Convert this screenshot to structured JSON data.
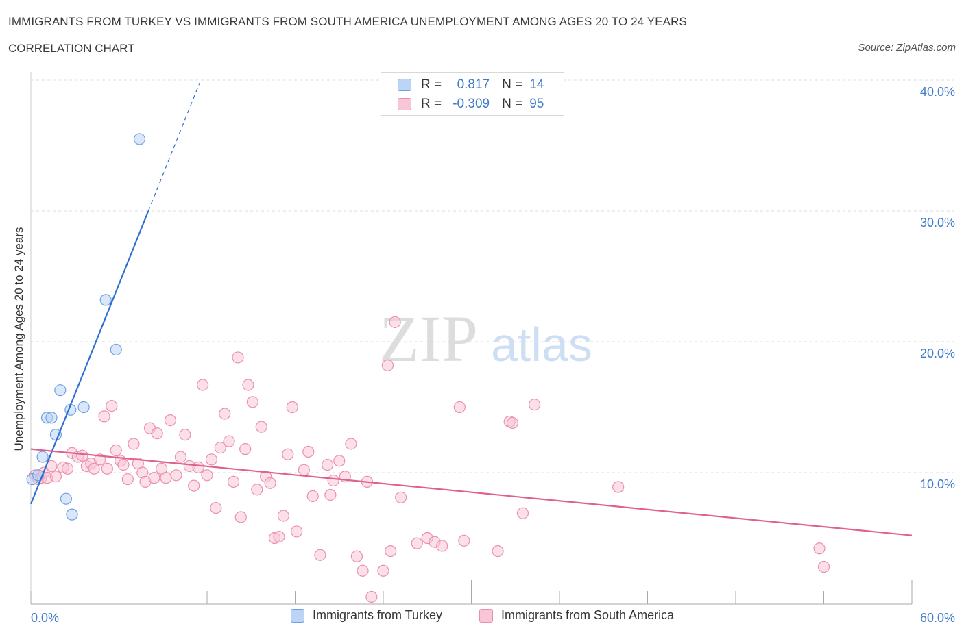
{
  "title": "IMMIGRANTS FROM TURKEY VS IMMIGRANTS FROM SOUTH AMERICA UNEMPLOYMENT AMONG AGES 20 TO 24 YEARS",
  "subtitle": "CORRELATION CHART",
  "source": "Source: ZipAtlas.com",
  "watermark": {
    "zip": "ZIP",
    "atlas": "atlas"
  },
  "legend_top": {
    "rows": [
      {
        "r_label": "R =",
        "r_value": "0.817",
        "n_label": "N =",
        "n_value": "14"
      },
      {
        "r_label": "R =",
        "r_value": "-0.309",
        "n_label": "N =",
        "n_value": "95"
      }
    ]
  },
  "legend_bottom": {
    "series1": "Immigrants from Turkey",
    "series2": "Immigrants from South America"
  },
  "colors": {
    "turkey_fill": "#bcd4f5",
    "turkey_stroke": "#6f9fe0",
    "turkey_line": "#2f6fd0",
    "sa_fill": "#f8c6d6",
    "sa_stroke": "#ec8fae",
    "sa_line": "#e0608e",
    "tick_label": "#3d7cc9",
    "grid": "#dddddd"
  },
  "chart_data": {
    "type": "scatter",
    "xlabel": "",
    "ylabel": "Unemployment Among Ages 20 to 24 years",
    "xlim": [
      0,
      60
    ],
    "ylim": [
      0,
      40
    ],
    "x_tick_labels": [
      "0.0%",
      "60.0%"
    ],
    "y_tick_labels": [
      "10.0%",
      "20.0%",
      "30.0%",
      "40.0%"
    ],
    "y_ticks": [
      10,
      20,
      30,
      40
    ],
    "grid": true,
    "legend": "top-center",
    "series": [
      {
        "name": "Immigrants from Turkey",
        "points": [
          [
            0.1,
            9.5
          ],
          [
            0.5,
            9.8
          ],
          [
            0.8,
            11.2
          ],
          [
            1.1,
            14.2
          ],
          [
            1.4,
            14.2
          ],
          [
            1.7,
            12.9
          ],
          [
            2.0,
            16.3
          ],
          [
            2.4,
            8.0
          ],
          [
            2.7,
            14.8
          ],
          [
            2.8,
            6.8
          ],
          [
            3.6,
            15.0
          ],
          [
            5.1,
            23.2
          ],
          [
            5.8,
            19.4
          ],
          [
            7.4,
            35.5
          ]
        ],
        "trend": {
          "x0": 0,
          "y0": 7.6,
          "x1": 8.0,
          "y1": 30.0,
          "dash_to_x": 11.5,
          "dash_to_y": 39.8
        }
      },
      {
        "name": "Immigrants from South America",
        "points": [
          [
            0.3,
            9.8
          ],
          [
            0.5,
            9.5
          ],
          [
            0.7,
            9.6
          ],
          [
            0.9,
            10.0
          ],
          [
            1.1,
            9.6
          ],
          [
            1.4,
            10.5
          ],
          [
            1.7,
            9.7
          ],
          [
            2.2,
            10.4
          ],
          [
            2.5,
            10.3
          ],
          [
            2.8,
            11.5
          ],
          [
            3.2,
            11.2
          ],
          [
            3.5,
            11.3
          ],
          [
            3.8,
            10.5
          ],
          [
            4.1,
            10.7
          ],
          [
            4.3,
            10.3
          ],
          [
            4.7,
            11.0
          ],
          [
            5.0,
            14.3
          ],
          [
            5.2,
            10.3
          ],
          [
            5.5,
            15.1
          ],
          [
            5.8,
            11.7
          ],
          [
            6.1,
            10.9
          ],
          [
            6.3,
            10.6
          ],
          [
            6.6,
            9.5
          ],
          [
            7.0,
            12.2
          ],
          [
            7.3,
            10.7
          ],
          [
            7.6,
            10.0
          ],
          [
            7.8,
            9.3
          ],
          [
            8.1,
            13.4
          ],
          [
            8.4,
            9.6
          ],
          [
            8.6,
            13.0
          ],
          [
            8.9,
            10.3
          ],
          [
            9.2,
            9.6
          ],
          [
            9.5,
            14.0
          ],
          [
            9.9,
            9.8
          ],
          [
            10.2,
            11.2
          ],
          [
            10.5,
            12.9
          ],
          [
            10.8,
            10.5
          ],
          [
            11.1,
            9.0
          ],
          [
            11.4,
            10.4
          ],
          [
            11.7,
            16.7
          ],
          [
            12.0,
            9.8
          ],
          [
            12.3,
            11.0
          ],
          [
            12.6,
            7.3
          ],
          [
            12.9,
            11.9
          ],
          [
            13.2,
            14.5
          ],
          [
            13.5,
            12.4
          ],
          [
            13.8,
            9.3
          ],
          [
            14.1,
            18.8
          ],
          [
            14.3,
            6.6
          ],
          [
            14.6,
            11.8
          ],
          [
            14.8,
            16.7
          ],
          [
            15.1,
            15.4
          ],
          [
            15.4,
            8.7
          ],
          [
            15.7,
            13.5
          ],
          [
            16.0,
            9.7
          ],
          [
            16.3,
            9.2
          ],
          [
            16.6,
            5.0
          ],
          [
            16.9,
            5.1
          ],
          [
            17.2,
            6.7
          ],
          [
            17.5,
            11.4
          ],
          [
            17.8,
            15.0
          ],
          [
            18.1,
            5.5
          ],
          [
            18.6,
            10.2
          ],
          [
            18.9,
            11.6
          ],
          [
            19.2,
            8.2
          ],
          [
            19.7,
            3.7
          ],
          [
            20.2,
            10.6
          ],
          [
            20.4,
            8.3
          ],
          [
            20.6,
            9.4
          ],
          [
            21.0,
            10.9
          ],
          [
            21.4,
            9.7
          ],
          [
            21.8,
            12.2
          ],
          [
            22.2,
            3.6
          ],
          [
            22.9,
            9.3
          ],
          [
            22.6,
            2.5
          ],
          [
            23.2,
            0.5
          ],
          [
            24.0,
            2.5
          ],
          [
            24.3,
            18.2
          ],
          [
            24.5,
            4.0
          ],
          [
            24.8,
            21.5
          ],
          [
            25.2,
            8.1
          ],
          [
            26.3,
            4.6
          ],
          [
            27.0,
            5.0
          ],
          [
            27.5,
            4.7
          ],
          [
            28.0,
            4.4
          ],
          [
            29.5,
            4.8
          ],
          [
            29.2,
            15.0
          ],
          [
            31.8,
            4.0
          ],
          [
            32.6,
            13.9
          ],
          [
            32.8,
            13.8
          ],
          [
            33.5,
            6.9
          ],
          [
            34.3,
            15.2
          ],
          [
            40.0,
            8.9
          ],
          [
            53.7,
            4.2
          ],
          [
            54.0,
            2.8
          ]
        ],
        "trend": {
          "x0": 0,
          "y0": 11.8,
          "x1": 60,
          "y1": 5.2
        }
      }
    ]
  }
}
